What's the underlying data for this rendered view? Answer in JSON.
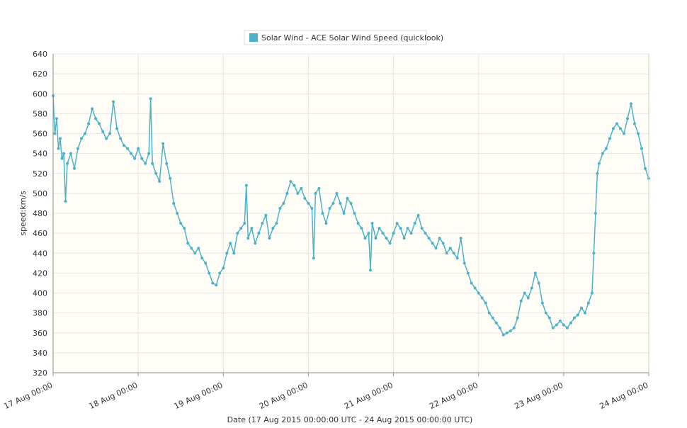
{
  "chart_data": {
    "type": "line",
    "legend": {
      "label": "Solar Wind - ACE Solar Wind Speed (quicklook)",
      "color": "#4bb3c8",
      "placement": "top-center"
    },
    "ylabel": "speed:km/s",
    "xlabel": "Date (17 Aug 2015 00:00:00 UTC - 24 Aug 2015 00:00:00 UTC)",
    "ylim": [
      320,
      640
    ],
    "yticks": [
      320,
      340,
      360,
      380,
      400,
      420,
      440,
      460,
      480,
      500,
      520,
      540,
      560,
      580,
      600,
      620,
      640
    ],
    "x_unit": "hours since 17 Aug 00:00",
    "xlim": [
      0,
      168
    ],
    "xticks": [
      {
        "x": 0,
        "label": "17 Aug 00:00"
      },
      {
        "x": 24,
        "label": "18 Aug 00:00"
      },
      {
        "x": 48,
        "label": "19 Aug 00:00"
      },
      {
        "x": 72,
        "label": "20 Aug 00:00"
      },
      {
        "x": 96,
        "label": "21 Aug 00:00"
      },
      {
        "x": 120,
        "label": "22 Aug 00:00"
      },
      {
        "x": 144,
        "label": "23 Aug 00:00"
      },
      {
        "x": 168,
        "label": "24 Aug 00:00"
      }
    ],
    "grid": true,
    "plot_background": "#fffdf5",
    "series": [
      {
        "name": "Solar Wind - ACE Solar Wind Speed (quicklook)",
        "color": "#4bb3c8",
        "points": [
          [
            0,
            598
          ],
          [
            0.5,
            560
          ],
          [
            1,
            575
          ],
          [
            1.5,
            545
          ],
          [
            2,
            555
          ],
          [
            2.5,
            535
          ],
          [
            3,
            540
          ],
          [
            3.5,
            492
          ],
          [
            4,
            530
          ],
          [
            5,
            540
          ],
          [
            6,
            525
          ],
          [
            7,
            545
          ],
          [
            8,
            555
          ],
          [
            9,
            560
          ],
          [
            10,
            570
          ],
          [
            11,
            585
          ],
          [
            12,
            575
          ],
          [
            13,
            570
          ],
          [
            14,
            562
          ],
          [
            15,
            555
          ],
          [
            16,
            560
          ],
          [
            17,
            592
          ],
          [
            18,
            565
          ],
          [
            19,
            555
          ],
          [
            20,
            548
          ],
          [
            21,
            545
          ],
          [
            22,
            540
          ],
          [
            23,
            535
          ],
          [
            24,
            545
          ],
          [
            25,
            535
          ],
          [
            26,
            530
          ],
          [
            27,
            540
          ],
          [
            27.5,
            595
          ],
          [
            28,
            530
          ],
          [
            29,
            520
          ],
          [
            30,
            512
          ],
          [
            31,
            550
          ],
          [
            32,
            530
          ],
          [
            33,
            515
          ],
          [
            34,
            490
          ],
          [
            35,
            480
          ],
          [
            36,
            470
          ],
          [
            37,
            465
          ],
          [
            38,
            450
          ],
          [
            39,
            445
          ],
          [
            40,
            440
          ],
          [
            41,
            445
          ],
          [
            42,
            435
          ],
          [
            43,
            430
          ],
          [
            44,
            420
          ],
          [
            45,
            410
          ],
          [
            46,
            408
          ],
          [
            47,
            420
          ],
          [
            48,
            425
          ],
          [
            49,
            440
          ],
          [
            50,
            450
          ],
          [
            51,
            440
          ],
          [
            52,
            460
          ],
          [
            53,
            465
          ],
          [
            54,
            470
          ],
          [
            54.5,
            508
          ],
          [
            55,
            455
          ],
          [
            56,
            465
          ],
          [
            57,
            450
          ],
          [
            58,
            460
          ],
          [
            59,
            470
          ],
          [
            60,
            478
          ],
          [
            61,
            455
          ],
          [
            62,
            465
          ],
          [
            63,
            470
          ],
          [
            64,
            485
          ],
          [
            65,
            490
          ],
          [
            66,
            500
          ],
          [
            67,
            512
          ],
          [
            68,
            508
          ],
          [
            69,
            500
          ],
          [
            70,
            505
          ],
          [
            71,
            495
          ],
          [
            72,
            490
          ],
          [
            73,
            485
          ],
          [
            73.5,
            435
          ],
          [
            74,
            500
          ],
          [
            75,
            505
          ],
          [
            76,
            480
          ],
          [
            77,
            470
          ],
          [
            78,
            485
          ],
          [
            79,
            490
          ],
          [
            80,
            500
          ],
          [
            81,
            490
          ],
          [
            82,
            480
          ],
          [
            83,
            495
          ],
          [
            84,
            490
          ],
          [
            85,
            480
          ],
          [
            86,
            470
          ],
          [
            87,
            465
          ],
          [
            88,
            455
          ],
          [
            89,
            460
          ],
          [
            89.5,
            423
          ],
          [
            90,
            470
          ],
          [
            91,
            455
          ],
          [
            92,
            465
          ],
          [
            93,
            460
          ],
          [
            94,
            455
          ],
          [
            95,
            450
          ],
          [
            96,
            460
          ],
          [
            97,
            470
          ],
          [
            98,
            465
          ],
          [
            99,
            455
          ],
          [
            100,
            465
          ],
          [
            101,
            460
          ],
          [
            102,
            470
          ],
          [
            103,
            478
          ],
          [
            104,
            465
          ],
          [
            105,
            460
          ],
          [
            106,
            455
          ],
          [
            107,
            450
          ],
          [
            108,
            445
          ],
          [
            109,
            455
          ],
          [
            110,
            450
          ],
          [
            111,
            440
          ],
          [
            112,
            445
          ],
          [
            113,
            440
          ],
          [
            114,
            435
          ],
          [
            115,
            455
          ],
          [
            116,
            430
          ],
          [
            117,
            420
          ],
          [
            118,
            410
          ],
          [
            119,
            405
          ],
          [
            120,
            400
          ],
          [
            121,
            395
          ],
          [
            122,
            390
          ],
          [
            123,
            380
          ],
          [
            124,
            375
          ],
          [
            125,
            370
          ],
          [
            126,
            365
          ],
          [
            127,
            358
          ],
          [
            128,
            360
          ],
          [
            129,
            362
          ],
          [
            130,
            365
          ],
          [
            131,
            375
          ],
          [
            132,
            392
          ],
          [
            133,
            400
          ],
          [
            134,
            395
          ],
          [
            135,
            405
          ],
          [
            136,
            420
          ],
          [
            137,
            410
          ],
          [
            138,
            390
          ],
          [
            139,
            380
          ],
          [
            140,
            375
          ],
          [
            141,
            365
          ],
          [
            142,
            368
          ],
          [
            143,
            372
          ],
          [
            144,
            368
          ],
          [
            145,
            365
          ],
          [
            146,
            370
          ],
          [
            147,
            375
          ],
          [
            148,
            378
          ],
          [
            149,
            385
          ],
          [
            150,
            380
          ],
          [
            151,
            390
          ],
          [
            152,
            400
          ],
          [
            152.5,
            440
          ],
          [
            153,
            480
          ],
          [
            153.5,
            520
          ],
          [
            154,
            530
          ],
          [
            155,
            540
          ],
          [
            156,
            545
          ],
          [
            157,
            555
          ],
          [
            158,
            565
          ],
          [
            159,
            570
          ],
          [
            160,
            565
          ],
          [
            161,
            560
          ],
          [
            162,
            575
          ],
          [
            163,
            590
          ],
          [
            164,
            570
          ],
          [
            165,
            560
          ],
          [
            166,
            545
          ],
          [
            167,
            525
          ],
          [
            168,
            515
          ]
        ]
      }
    ]
  }
}
